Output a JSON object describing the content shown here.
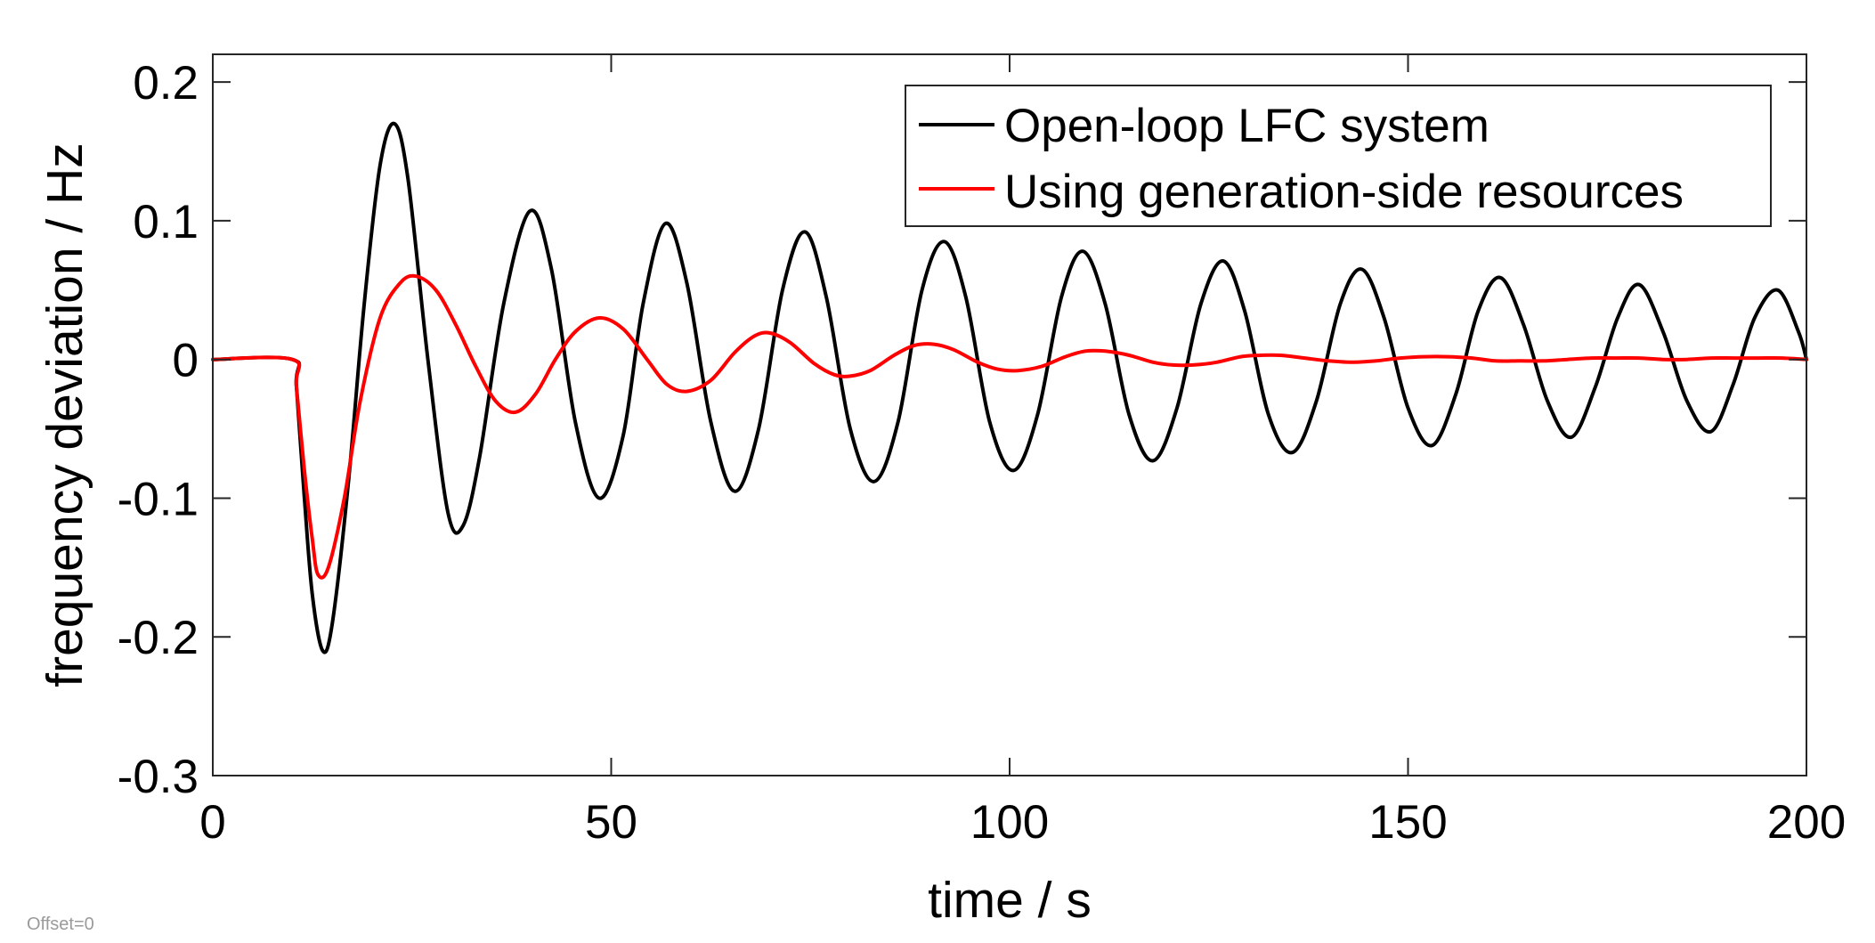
{
  "chart_data": {
    "type": "line",
    "title": "",
    "xlabel": "time / s",
    "ylabel": "frequency deviation / Hz",
    "xlim": [
      0,
      200
    ],
    "ylim": [
      -0.3,
      0.22
    ],
    "xticks": [
      0,
      50,
      100,
      150,
      200
    ],
    "xtick_labels": [
      "0",
      "50",
      "100",
      "150",
      "200"
    ],
    "yticks": [
      -0.3,
      -0.2,
      -0.1,
      0,
      0.1,
      0.2
    ],
    "ytick_labels": [
      "-0.3",
      "-0.2",
      "-0.1",
      "0",
      "0.1",
      "0.2"
    ],
    "grid": false,
    "legend_position": "top-right",
    "note": "Offset=0",
    "series": [
      {
        "name": "Open-loop LFC system",
        "color": "#000000",
        "x": [
          0,
          10,
          10.5,
          11.5,
          12.5,
          13.8,
          15,
          17,
          19,
          21,
          22.8,
          24.5,
          27,
          29.5,
          31.4,
          33.5,
          36.5,
          39.8,
          42.5,
          45.5,
          48.5,
          51.5,
          54,
          56.8,
          59.5,
          62.5,
          65.5,
          68.5,
          71.5,
          74.3,
          77,
          80,
          83,
          86,
          89,
          91.8,
          94.5,
          97.5,
          100.5,
          103.5,
          106.5,
          109.2,
          112,
          115,
          118,
          121,
          124,
          126.8,
          129.5,
          132.5,
          135.5,
          138.5,
          141.5,
          144.2,
          147,
          150,
          153,
          156,
          158.8,
          161.6,
          164.5,
          167.5,
          170.5,
          173.5,
          176.3,
          179,
          182,
          185,
          188,
          190.8,
          193.5,
          196.4,
          199,
          200
        ],
        "y": [
          0,
          0,
          -0.02,
          -0.1,
          -0.17,
          -0.21,
          -0.19,
          -0.09,
          0.04,
          0.14,
          0.17,
          0.13,
          0.0,
          -0.11,
          -0.12,
          -0.07,
          0.04,
          0.107,
          0.065,
          -0.045,
          -0.1,
          -0.055,
          0.04,
          0.098,
          0.055,
          -0.045,
          -0.095,
          -0.05,
          0.05,
          0.092,
          0.045,
          -0.05,
          -0.088,
          -0.045,
          0.05,
          0.085,
          0.045,
          -0.045,
          -0.08,
          -0.04,
          0.045,
          0.078,
          0.04,
          -0.04,
          -0.073,
          -0.035,
          0.04,
          0.071,
          0.035,
          -0.04,
          -0.067,
          -0.03,
          0.04,
          0.065,
          0.03,
          -0.035,
          -0.062,
          -0.025,
          0.035,
          0.059,
          0.025,
          -0.03,
          -0.056,
          -0.02,
          0.03,
          0.054,
          0.02,
          -0.03,
          -0.052,
          -0.018,
          0.03,
          0.05,
          0.02,
          0.0
        ]
      },
      {
        "name": "Using generation-side resources",
        "color": "#ff0000",
        "x": [
          0,
          10,
          10.5,
          11.5,
          12.5,
          13.2,
          14.5,
          16.5,
          18.5,
          21,
          23.5,
          25.5,
          28,
          30.5,
          33,
          35.5,
          38,
          40.5,
          43,
          45.5,
          48.5,
          51.5,
          54.5,
          57,
          59.5,
          62.5,
          65.5,
          68,
          70,
          72.5,
          75.5,
          78,
          80,
          82.5,
          85.5,
          88,
          90.5,
          93,
          96,
          98.5,
          101,
          104,
          107,
          109.5,
          112,
          115,
          118,
          120.5,
          123,
          126,
          129,
          131.5,
          134,
          137,
          140,
          143,
          146,
          149,
          152,
          155,
          158,
          161,
          164,
          167,
          170,
          173,
          176,
          179,
          182,
          185,
          188,
          191,
          194,
          197,
          200
        ],
        "y": [
          0,
          0,
          -0.02,
          -0.08,
          -0.13,
          -0.155,
          -0.15,
          -0.1,
          -0.03,
          0.03,
          0.055,
          0.06,
          0.05,
          0.025,
          -0.005,
          -0.03,
          -0.038,
          -0.025,
          0.0,
          0.02,
          0.03,
          0.022,
          0.0,
          -0.018,
          -0.023,
          -0.015,
          0.005,
          0.017,
          0.019,
          0.012,
          -0.003,
          -0.011,
          -0.012,
          -0.008,
          0.003,
          0.01,
          0.011,
          0.007,
          -0.002,
          -0.007,
          -0.008,
          -0.005,
          0.002,
          0.006,
          0.006,
          0.003,
          -0.002,
          -0.004,
          -0.004,
          -0.002,
          0.002,
          0.003,
          0.003,
          0.001,
          -0.001,
          -0.002,
          -0.001,
          0.001,
          0.002,
          0.002,
          0.001,
          -0.001,
          -0.001,
          -0.001,
          0.0,
          0.001,
          0.001,
          0.001,
          0.0,
          0.0,
          0.001,
          0.001,
          0.001,
          0.001,
          0.0
        ]
      }
    ]
  }
}
